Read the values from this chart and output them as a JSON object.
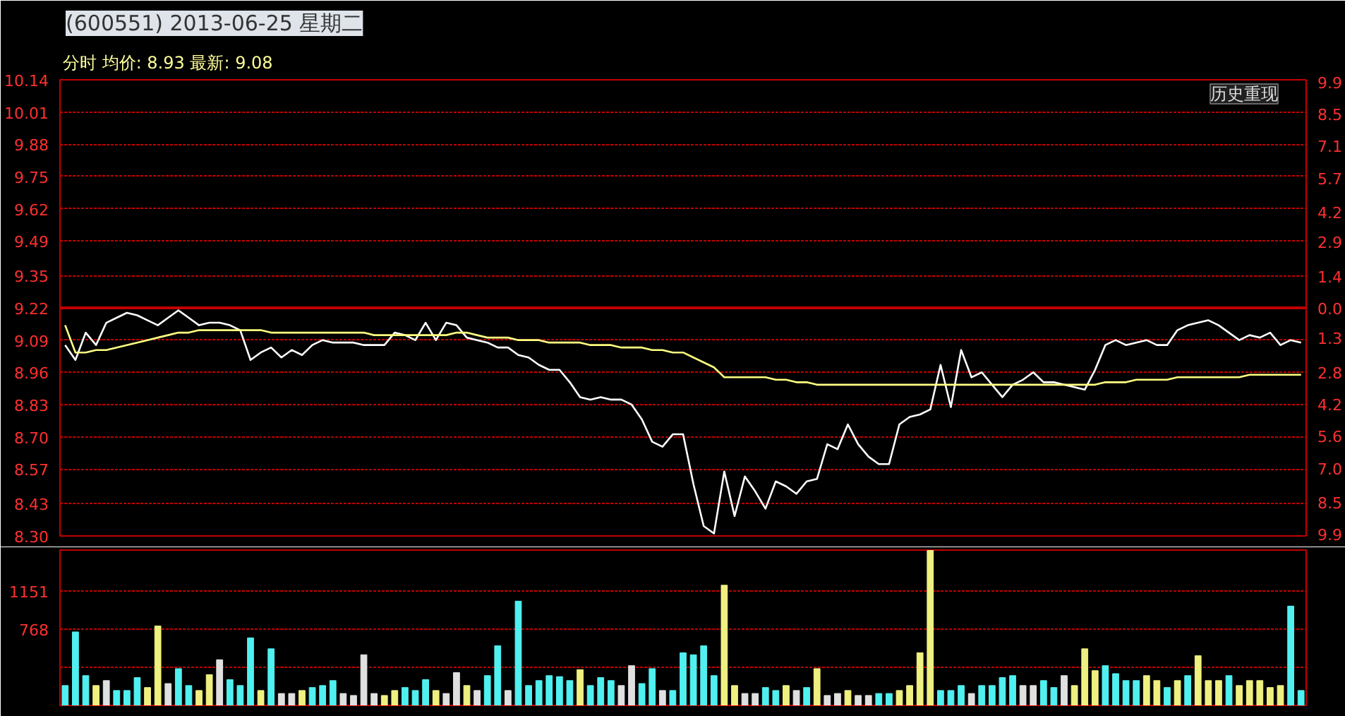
{
  "chart_data": [
    {
      "type": "line",
      "title": "(600551) 2013-06-25 星期二",
      "annotations": [
        "分时 均价: 8.93 最新: 9.08",
        "历史重现"
      ],
      "categories": [
        null,
        null,
        null,
        null,
        null,
        null,
        null,
        null,
        null,
        null,
        null,
        null,
        null,
        null,
        null,
        null,
        null,
        null,
        null,
        null,
        null,
        null,
        null,
        null,
        null,
        null,
        null,
        null,
        null,
        null,
        null,
        null,
        null,
        null,
        null,
        null,
        null,
        null,
        null,
        null,
        null,
        null,
        null,
        null,
        null,
        null,
        null,
        null,
        null,
        null,
        null,
        null,
        null,
        null,
        null,
        null,
        null,
        null,
        null,
        null,
        null,
        null,
        null,
        null,
        null,
        null,
        null,
        null,
        null,
        null,
        null,
        null,
        null,
        null,
        null,
        null,
        null,
        null,
        null,
        null,
        null,
        null,
        null,
        null,
        null,
        null,
        null,
        null,
        null,
        null,
        null,
        null,
        null,
        null,
        null,
        null,
        null,
        null,
        null,
        null,
        null,
        null,
        null,
        null,
        null,
        null,
        null,
        null,
        null,
        null,
        null,
        null,
        null,
        null,
        null,
        null,
        null,
        null,
        null,
        null,
        null
      ],
      "series": [
        {
          "color": "#ffffff",
          "values": [
            9.07,
            9.01,
            9.12,
            9.07,
            9.16,
            9.18,
            9.2,
            9.19,
            9.17,
            9.15,
            9.18,
            9.21,
            9.18,
            9.15,
            9.16,
            9.16,
            9.15,
            9.13,
            9.01,
            9.04,
            9.06,
            9.02,
            9.05,
            9.03,
            9.07,
            9.09,
            9.08,
            9.08,
            9.08,
            9.07,
            9.07,
            9.07,
            9.12,
            9.11,
            9.09,
            9.16,
            9.09,
            9.16,
            9.15,
            9.1,
            9.09,
            9.08,
            9.06,
            9.06,
            9.03,
            9.02,
            8.99,
            8.97,
            8.97,
            8.92,
            8.86,
            8.85,
            8.86,
            8.85,
            8.85,
            8.83,
            8.77,
            8.68,
            8.66,
            8.71,
            8.71,
            8.51,
            8.34,
            8.31,
            8.56,
            8.38,
            8.54,
            8.48,
            8.41,
            8.52,
            8.5,
            8.47,
            8.52,
            8.53,
            8.67,
            8.65,
            8.75,
            8.67,
            8.62,
            8.59,
            8.59,
            8.75,
            8.78,
            8.79,
            8.81,
            8.99,
            8.82,
            9.05,
            8.94,
            8.96,
            8.91,
            8.86,
            8.91,
            8.93,
            8.96,
            8.92,
            8.92,
            8.91,
            8.9,
            8.89,
            8.97,
            9.07,
            9.09,
            9.07,
            9.08,
            9.09,
            9.07,
            9.07,
            9.13,
            9.15,
            9.16,
            9.17,
            9.15,
            9.12,
            9.09,
            9.11,
            9.1,
            9.12,
            9.07,
            9.09,
            9.08
          ]
        },
        {
          "color": "#ffff80",
          "values": [
            9.15,
            9.04,
            9.04,
            9.05,
            9.05,
            9.06,
            9.07,
            9.08,
            9.09,
            9.1,
            9.11,
            9.12,
            9.12,
            9.13,
            9.13,
            9.13,
            9.13,
            9.13,
            9.13,
            9.13,
            9.12,
            9.12,
            9.12,
            9.12,
            9.12,
            9.12,
            9.12,
            9.12,
            9.12,
            9.12,
            9.11,
            9.11,
            9.11,
            9.11,
            9.11,
            9.11,
            9.11,
            9.11,
            9.12,
            9.12,
            9.11,
            9.1,
            9.1,
            9.1,
            9.09,
            9.09,
            9.09,
            9.08,
            9.08,
            9.08,
            9.08,
            9.07,
            9.07,
            9.07,
            9.06,
            9.06,
            9.06,
            9.05,
            9.05,
            9.04,
            9.04,
            9.02,
            9.0,
            8.98,
            8.94,
            8.94,
            8.94,
            8.94,
            8.94,
            8.93,
            8.93,
            8.92,
            8.92,
            8.91,
            8.91,
            8.91,
            8.91,
            8.91,
            8.91,
            8.91,
            8.91,
            8.91,
            8.91,
            8.91,
            8.91,
            8.91,
            8.91,
            8.91,
            8.91,
            8.91,
            8.91,
            8.91,
            8.91,
            8.91,
            8.91,
            8.91,
            8.91,
            8.91,
            8.91,
            8.91,
            8.91,
            8.92,
            8.92,
            8.92,
            8.93,
            8.93,
            8.93,
            8.93,
            8.94,
            8.94,
            8.94,
            8.94,
            8.94,
            8.94,
            8.94,
            8.95,
            8.95,
            8.95,
            8.95,
            8.95,
            8.95
          ]
        }
      ],
      "ylim": [
        8.3,
        10.14
      ],
      "yticks": [
        10.14,
        10.01,
        9.88,
        9.75,
        9.62,
        9.49,
        9.35,
        9.22,
        9.09,
        8.96,
        8.83,
        {
          "value": 8.7,
          "label": "8.70"
        },
        8.57,
        8.43,
        {
          "value": 8.3,
          "label": "8.30"
        }
      ],
      "y2lim": [
        -9.98,
        9.98
      ],
      "y2ticks": [
        9.9,
        8.5,
        7.1,
        5.7,
        4.2,
        2.9,
        1.4,
        {
          "value": 0,
          "label": "0.0"
        },
        {
          "value": -1.3,
          "label": "1.3"
        },
        {
          "value": -2.8,
          "label": "2.8"
        },
        {
          "value": -4.2,
          "label": "4.2"
        },
        {
          "value": -5.6,
          "label": "5.6"
        },
        {
          "value": -7.0,
          "label": "7.0"
        },
        {
          "value": -8.5,
          "label": "8.5"
        },
        {
          "value": -9.9,
          "label": "9.9"
        }
      ],
      "grid": "y",
      "tick_labels": "y",
      "ref_lines": [
        {
          "axis": "y",
          "value": 9.22,
          "color": "#c00000"
        }
      ]
    },
    {
      "type": "bar",
      "categories": [
        null,
        null,
        null,
        null,
        null,
        null,
        null,
        null,
        null,
        null,
        null,
        null,
        null,
        null,
        null,
        null,
        null,
        null,
        null,
        null,
        null,
        null,
        null,
        null,
        null,
        null,
        null,
        null,
        null,
        null,
        null,
        null,
        null,
        null,
        null,
        null,
        null,
        null,
        null,
        null,
        null,
        null,
        null,
        null,
        null,
        null,
        null,
        null,
        null,
        null,
        null,
        null,
        null,
        null,
        null,
        null,
        null,
        null,
        null,
        null,
        null,
        null,
        null,
        null,
        null,
        null,
        null,
        null,
        null,
        null,
        null,
        null,
        null,
        null,
        null,
        null,
        null,
        null,
        null,
        null,
        null,
        null,
        null,
        null,
        null,
        null,
        null,
        null,
        null,
        null,
        null,
        null,
        null,
        null,
        null,
        null,
        null,
        null,
        null,
        null,
        null,
        null,
        null,
        null,
        null,
        null,
        null,
        null,
        null,
        null,
        null,
        null,
        null,
        null,
        null,
        null,
        null,
        null,
        null,
        null,
        null
      ],
      "values": [
        200,
        740,
        300,
        200,
        250,
        150,
        150,
        280,
        180,
        800,
        220,
        370,
        200,
        150,
        310,
        460,
        260,
        200,
        680,
        150,
        570,
        120,
        120,
        150,
        180,
        200,
        250,
        120,
        100,
        510,
        120,
        100,
        150,
        180,
        150,
        260,
        150,
        120,
        330,
        200,
        150,
        300,
        600,
        150,
        1050,
        200,
        250,
        300,
        290,
        250,
        360,
        200,
        280,
        250,
        200,
        400,
        220,
        370,
        150,
        150,
        530,
        510,
        600,
        300,
        1210,
        200,
        120,
        120,
        180,
        150,
        200,
        150,
        180,
        370,
        100,
        120,
        150,
        100,
        100,
        120,
        120,
        150,
        200,
        530,
        1560,
        150,
        150,
        200,
        120,
        200,
        200,
        280,
        300,
        200,
        200,
        250,
        180,
        300,
        200,
        570,
        350,
        400,
        320,
        250,
        250,
        300,
        250,
        180,
        250,
        300,
        500,
        250,
        250,
        300,
        200,
        250,
        250,
        180,
        200,
        1000,
        150
      ],
      "colors": [
        "#50f0f0",
        "#50f0f0",
        "#50f0f0",
        "#f0f080",
        "#e0e0e0",
        "#50f0f0",
        "#50f0f0",
        "#50f0f0",
        "#f0f080",
        "#f0f080",
        "#e0e0e0",
        "#50f0f0",
        "#50f0f0",
        "#f0f080",
        "#f0f080",
        "#e0e0e0",
        "#50f0f0",
        "#50f0f0",
        "#50f0f0",
        "#f0f080",
        "#50f0f0",
        "#e0e0e0",
        "#e0e0e0",
        "#f0f080",
        "#50f0f0",
        "#50f0f0",
        "#50f0f0",
        "#e0e0e0",
        "#e0e0e0",
        "#e0e0e0",
        "#e0e0e0",
        "#f0f080",
        "#f0f080",
        "#50f0f0",
        "#50f0f0",
        "#50f0f0",
        "#f0f080",
        "#e0e0e0",
        "#e0e0e0",
        "#f0f080",
        "#e0e0e0",
        "#50f0f0",
        "#50f0f0",
        "#e0e0e0",
        "#50f0f0",
        "#50f0f0",
        "#50f0f0",
        "#50f0f0",
        "#50f0f0",
        "#50f0f0",
        "#f0f080",
        "#50f0f0",
        "#50f0f0",
        "#50f0f0",
        "#e0e0e0",
        "#e0e0e0",
        "#50f0f0",
        "#50f0f0",
        "#e0e0e0",
        "#50f0f0",
        "#50f0f0",
        "#50f0f0",
        "#50f0f0",
        "#50f0f0",
        "#f0f080",
        "#f0f080",
        "#e0e0e0",
        "#e0e0e0",
        "#50f0f0",
        "#50f0f0",
        "#f0f080",
        "#e0e0e0",
        "#50f0f0",
        "#f0f080",
        "#e0e0e0",
        "#e0e0e0",
        "#f0f080",
        "#e0e0e0",
        "#e0e0e0",
        "#50f0f0",
        "#50f0f0",
        "#f0f080",
        "#f0f080",
        "#f0f080",
        "#f0f080",
        "#50f0f0",
        "#50f0f0",
        "#50f0f0",
        "#e0e0e0",
        "#50f0f0",
        "#50f0f0",
        "#50f0f0",
        "#50f0f0",
        "#e0e0e0",
        "#e0e0e0",
        "#50f0f0",
        "#50f0f0",
        "#e0e0e0",
        "#f0f080",
        "#f0f080",
        "#f0f080",
        "#50f0f0",
        "#50f0f0",
        "#50f0f0",
        "#50f0f0",
        "#f0f080",
        "#f0f080",
        "#50f0f0",
        "#f0f080",
        "#50f0f0",
        "#f0f080",
        "#f0f080",
        "#f0f080",
        "#50f0f0",
        "#f0f080",
        "#f0f080",
        "#f0f080",
        "#f0f080",
        "#f0f080",
        "#50f0f0",
        "#50f0f0"
      ],
      "ylim": [
        0,
        1564
      ],
      "yticks": [
        {
          "value": 384,
          "label": null
        },
        768,
        1151
      ],
      "grid": "y",
      "tick_labels": "y"
    }
  ]
}
